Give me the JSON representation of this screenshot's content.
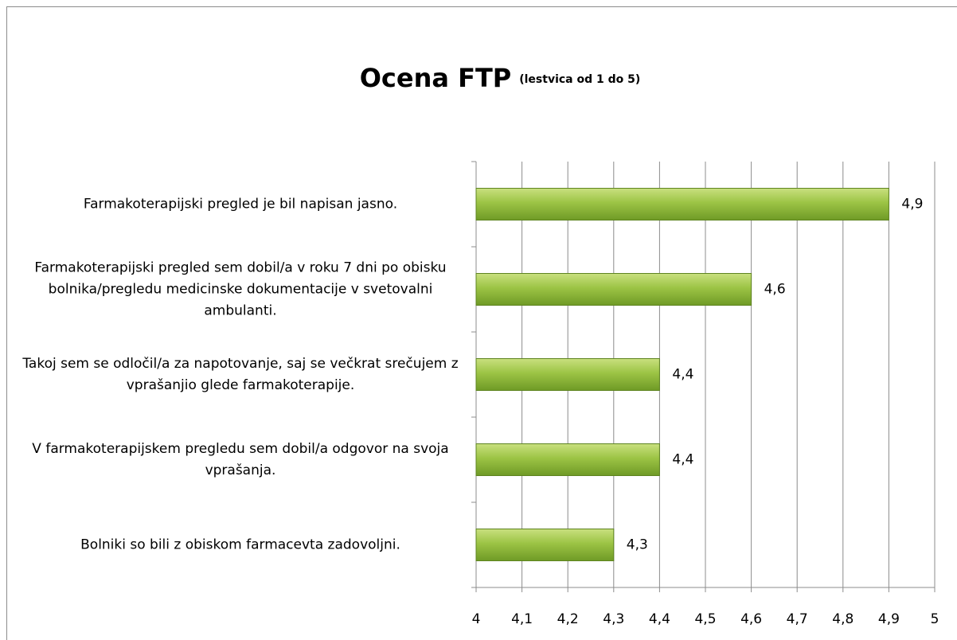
{
  "chart_data": {
    "type": "bar",
    "orientation": "horizontal",
    "title": "Ocena FTP",
    "subtitle": "(lestvica od 1 do 5)",
    "categories": [
      "Farmakoterapijski pregled je bil napisan jasno.",
      "Farmakoterapijski pregled sem dobil/a v roku 7 dni po obisku bolnika/pregledu medicinske dokumentacije v svetovalni ambulanti.",
      "Takoj sem se odločil/a za napotovanje, saj se večkrat srečujem z vprašanjio glede farmakoterapije.",
      "V farmakoterapijskem pregledu sem dobil/a odgovor na svoja vprašanja.",
      "Bolniki so bili z obiskom farmacevta zadovoljni."
    ],
    "values": [
      4.9,
      4.6,
      4.4,
      4.4,
      4.3
    ],
    "value_labels": [
      "4,9",
      "4,6",
      "4,4",
      "4,4",
      "4,3"
    ],
    "color": "#8db83a",
    "xlim": [
      4,
      5
    ],
    "xticks": [
      4,
      {
        "value": 4.1,
        "label": "4,1"
      },
      {
        "value": 4.2,
        "label": "4,2"
      },
      {
        "value": 4.3,
        "label": "4,3"
      },
      {
        "value": 4.4,
        "label": "4,4"
      },
      {
        "value": 4.5,
        "label": "4,5"
      },
      {
        "value": 4.6,
        "label": "4,6"
      },
      {
        "value": 4.7,
        "label": "4,7"
      },
      {
        "value": 4.8,
        "label": "4,8"
      },
      {
        "value": 4.9,
        "label": "4,9"
      },
      5
    ],
    "grid": true
  }
}
